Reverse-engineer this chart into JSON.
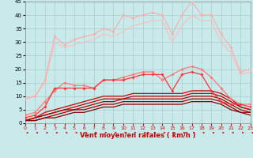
{
  "title": "",
  "xlabel": "Vent moyen/en rafales ( km/h )",
  "xlim": [
    0,
    23
  ],
  "ylim": [
    0,
    45
  ],
  "yticks": [
    0,
    5,
    10,
    15,
    20,
    25,
    30,
    35,
    40,
    45
  ],
  "xticks": [
    0,
    1,
    2,
    3,
    4,
    5,
    6,
    7,
    8,
    9,
    10,
    11,
    12,
    13,
    14,
    15,
    16,
    17,
    18,
    19,
    20,
    21,
    22,
    23
  ],
  "bg_color": "#c8eaea",
  "grid_color": "#aacccc",
  "series": [
    {
      "x": [
        0,
        1,
        2,
        3,
        4,
        5,
        6,
        7,
        8,
        9,
        10,
        11,
        12,
        13,
        14,
        15,
        16,
        17,
        18,
        19,
        20,
        21,
        22,
        23
      ],
      "y": [
        9,
        10,
        16,
        32,
        29,
        31,
        32,
        33,
        35,
        34,
        40,
        39,
        40,
        41,
        40,
        33,
        40,
        45,
        40,
        40,
        33,
        28,
        19,
        20
      ],
      "color": "#ffaaaa",
      "lw": 0.8,
      "marker": "D",
      "ms": 2.0
    },
    {
      "x": [
        0,
        1,
        2,
        3,
        4,
        5,
        6,
        7,
        8,
        9,
        10,
        11,
        12,
        13,
        14,
        15,
        16,
        17,
        18,
        19,
        20,
        21,
        22,
        23
      ],
      "y": [
        9,
        10,
        15,
        30,
        28,
        29,
        30,
        31,
        33,
        32,
        34,
        36,
        37,
        38,
        38,
        30,
        36,
        40,
        38,
        38,
        30,
        26,
        18,
        19
      ],
      "color": "#ffbbbb",
      "lw": 0.8,
      "marker": null,
      "ms": 0
    },
    {
      "x": [
        0,
        1,
        2,
        3,
        4,
        5,
        6,
        7,
        8,
        9,
        10,
        11,
        12,
        13,
        14,
        15,
        16,
        17,
        18,
        19,
        20,
        21,
        22,
        23
      ],
      "y": [
        3,
        4,
        8,
        12,
        15,
        14,
        14,
        13,
        16,
        16,
        17,
        18,
        19,
        19,
        16,
        18,
        20,
        21,
        20,
        17,
        13,
        9,
        7,
        7
      ],
      "color": "#ff7777",
      "lw": 0.9,
      "marker": "D",
      "ms": 2.0
    },
    {
      "x": [
        0,
        1,
        2,
        3,
        4,
        5,
        6,
        7,
        8,
        9,
        10,
        11,
        12,
        13,
        14,
        15,
        16,
        17,
        18,
        19,
        20,
        21,
        22,
        23
      ],
      "y": [
        2,
        3,
        6,
        13,
        13,
        13,
        13,
        13,
        16,
        16,
        16,
        17,
        18,
        18,
        18,
        12,
        18,
        19,
        18,
        12,
        8,
        7,
        7,
        6
      ],
      "color": "#ff3333",
      "lw": 0.9,
      "marker": "D",
      "ms": 2.0
    },
    {
      "x": [
        0,
        1,
        2,
        3,
        4,
        5,
        6,
        7,
        8,
        9,
        10,
        11,
        12,
        13,
        14,
        15,
        16,
        17,
        18,
        19,
        20,
        21,
        22,
        23
      ],
      "y": [
        1,
        2,
        4,
        5,
        6,
        7,
        8,
        9,
        10,
        10,
        10,
        11,
        11,
        11,
        11,
        11,
        11,
        12,
        12,
        12,
        11,
        9,
        6,
        5
      ],
      "color": "#cc0000",
      "lw": 0.9,
      "marker": null,
      "ms": 0
    },
    {
      "x": [
        0,
        1,
        2,
        3,
        4,
        5,
        6,
        7,
        8,
        9,
        10,
        11,
        12,
        13,
        14,
        15,
        16,
        17,
        18,
        19,
        20,
        21,
        22,
        23
      ],
      "y": [
        1,
        2,
        3,
        4,
        5,
        6,
        7,
        8,
        9,
        9,
        9,
        10,
        10,
        10,
        10,
        10,
        10,
        11,
        11,
        11,
        10,
        8,
        6,
        5
      ],
      "color": "#bb0000",
      "lw": 0.9,
      "marker": null,
      "ms": 0
    },
    {
      "x": [
        0,
        1,
        2,
        3,
        4,
        5,
        6,
        7,
        8,
        9,
        10,
        11,
        12,
        13,
        14,
        15,
        16,
        17,
        18,
        19,
        20,
        21,
        22,
        23
      ],
      "y": [
        1,
        2,
        3,
        4,
        5,
        5,
        6,
        7,
        8,
        8,
        9,
        9,
        9,
        9,
        9,
        9,
        9,
        10,
        10,
        10,
        9,
        7,
        5,
        4
      ],
      "color": "#aa0000",
      "lw": 0.9,
      "marker": null,
      "ms": 0
    },
    {
      "x": [
        0,
        1,
        2,
        3,
        4,
        5,
        6,
        7,
        8,
        9,
        10,
        11,
        12,
        13,
        14,
        15,
        16,
        17,
        18,
        19,
        20,
        21,
        22,
        23
      ],
      "y": [
        1,
        1,
        2,
        3,
        4,
        5,
        5,
        6,
        7,
        7,
        8,
        8,
        8,
        8,
        8,
        8,
        8,
        9,
        9,
        9,
        8,
        6,
        4,
        4
      ],
      "color": "#990000",
      "lw": 0.9,
      "marker": null,
      "ms": 0
    },
    {
      "x": [
        0,
        1,
        2,
        3,
        4,
        5,
        6,
        7,
        8,
        9,
        10,
        11,
        12,
        13,
        14,
        15,
        16,
        17,
        18,
        19,
        20,
        21,
        22,
        23
      ],
      "y": [
        1,
        1,
        2,
        2,
        3,
        4,
        4,
        5,
        6,
        6,
        7,
        7,
        7,
        7,
        7,
        7,
        7,
        8,
        8,
        8,
        7,
        5,
        4,
        3
      ],
      "color": "#880000",
      "lw": 0.9,
      "marker": null,
      "ms": 0
    }
  ],
  "arrow_color": "#cc0000",
  "xlabel_color": "#cc0000",
  "xlabel_fontsize": 6.0,
  "tick_fontsize_x": 4.5,
  "tick_fontsize_y": 5.0
}
